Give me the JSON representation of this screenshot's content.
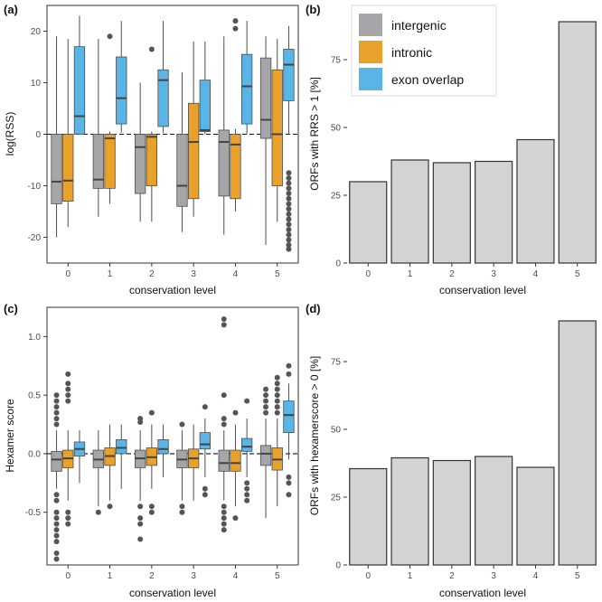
{
  "colors": {
    "intergenic": "#a6a6a8",
    "intronic": "#e8a22b",
    "exon_overlap": "#58b5e6",
    "bar_fill": "#d3d3d5",
    "bar_stroke": "#333333",
    "box_stroke": "#4d4d4d"
  },
  "legend": [
    {
      "label": "intergenic",
      "color": "#a6a6a8"
    },
    {
      "label": "intronic",
      "color": "#e8a22b"
    },
    {
      "label": "exon overlap",
      "color": "#58b5e6"
    }
  ],
  "chart_data": [
    {
      "panel": "(a)",
      "type": "boxplot",
      "xlabel": "conservation level",
      "ylabel": "log(RSS)",
      "categories": [
        "0",
        "1",
        "2",
        "3",
        "4",
        "5"
      ],
      "ylim": [
        -25,
        25
      ],
      "yticks": [
        -20,
        -10,
        0,
        10,
        20
      ],
      "reference_line": 0,
      "series": [
        {
          "name": "intergenic",
          "boxes": [
            {
              "min": -20,
              "q1": -13.5,
              "median": -9.2,
              "q3": 0,
              "max": 19,
              "outliers": []
            },
            {
              "min": -16,
              "q1": -10.5,
              "median": -8.8,
              "q3": 0,
              "max": 18.5,
              "outliers": []
            },
            {
              "min": -17,
              "q1": -11.5,
              "median": -2.5,
              "q3": 0,
              "max": 10,
              "outliers": []
            },
            {
              "min": -19,
              "q1": -14,
              "median": -10,
              "q3": 0,
              "max": 12,
              "outliers": []
            },
            {
              "min": -19.5,
              "q1": -12,
              "median": -1.5,
              "q3": 0.8,
              "max": 19,
              "outliers": []
            },
            {
              "min": -21.5,
              "q1": -0.8,
              "median": 2.8,
              "q3": 14.8,
              "max": 19,
              "outliers": []
            }
          ]
        },
        {
          "name": "intronic",
          "boxes": [
            {
              "min": -18,
              "q1": -13,
              "median": -9,
              "q3": 0,
              "max": 18.5,
              "outliers": []
            },
            {
              "min": -13.5,
              "q1": -10.5,
              "median": -0.8,
              "q3": 0,
              "max": 0.5,
              "outliers": [
                19
              ]
            },
            {
              "min": -17,
              "q1": -10,
              "median": -0.5,
              "q3": 0,
              "max": 0.5,
              "outliers": [
                16.5
              ]
            },
            {
              "min": -16,
              "q1": -12.5,
              "median": -1.5,
              "q3": 6,
              "max": 18,
              "outliers": []
            },
            {
              "min": -15,
              "q1": -12.5,
              "median": -2,
              "q3": 0,
              "max": 1,
              "outliers": [
                22,
                20.5
              ]
            },
            {
              "min": -17,
              "q1": -10,
              "median": 0,
              "q3": 12.5,
              "max": 18.5,
              "outliers": []
            }
          ]
        },
        {
          "name": "exon overlap",
          "boxes": [
            {
              "min": 0,
              "q1": 0,
              "median": 3.5,
              "q3": 17,
              "max": 23,
              "outliers": []
            },
            {
              "min": 0.3,
              "q1": 2,
              "median": 7,
              "q3": 15,
              "max": 22,
              "outliers": []
            },
            {
              "min": 0.3,
              "q1": 1.5,
              "median": 10.5,
              "q3": 12.5,
              "max": 22,
              "outliers": []
            },
            {
              "min": 0,
              "q1": 0.5,
              "median": 0.8,
              "q3": 10.5,
              "max": 18,
              "outliers": []
            },
            {
              "min": 0,
              "q1": 2,
              "median": 9.3,
              "q3": 15.5,
              "max": 22,
              "outliers": []
            },
            {
              "min": 0,
              "q1": 6.5,
              "median": 13.5,
              "q3": 16.5,
              "max": 21,
              "outliers": [
                -7.5,
                -8.5,
                -9.5,
                -10.5,
                -11.5,
                -12.5,
                -13.5,
                -14.5,
                -15.5,
                -16.5,
                -17.5,
                -18.5,
                -19.5,
                -20.5,
                -21.5,
                -22.3
              ]
            }
          ]
        }
      ]
    },
    {
      "panel": "(b)",
      "type": "bar",
      "xlabel": "conservation level",
      "ylabel": "ORFs with RRS > 1 [%]",
      "categories": [
        "0",
        "1",
        "2",
        "3",
        "4",
        "5"
      ],
      "values": [
        30,
        38,
        37,
        37.5,
        45.5,
        89
      ],
      "ylim": [
        0,
        95
      ],
      "yticks": [
        0,
        25,
        50,
        75
      ]
    },
    {
      "panel": "(c)",
      "type": "boxplot",
      "xlabel": "conservation level",
      "ylabel": "Hexamer score",
      "categories": [
        "0",
        "1",
        "2",
        "3",
        "4",
        "5"
      ],
      "ylim": [
        -0.95,
        1.25
      ],
      "yticks": [
        -0.5,
        0.0,
        0.5,
        1.0
      ],
      "ytick_labels": [
        "-0.5",
        "0.0",
        "0.5",
        "1.0"
      ],
      "reference_line": 0,
      "series": [
        {
          "name": "intergenic",
          "boxes": [
            {
              "min": -0.3,
              "q1": -0.15,
              "median": -0.05,
              "q3": 0.02,
              "max": 0.2,
              "outliers": [
                0.5,
                0.45,
                0.4,
                0.35,
                0.3,
                0.25,
                -0.35,
                -0.4,
                -0.5,
                -0.55,
                -0.6,
                -0.65,
                -0.7,
                -0.75,
                -0.85,
                -0.9
              ]
            },
            {
              "min": -0.45,
              "q1": -0.12,
              "median": -0.05,
              "q3": 0.03,
              "max": 0.2,
              "outliers": [
                -0.5
              ]
            },
            {
              "min": -0.4,
              "q1": -0.12,
              "median": -0.04,
              "q3": 0.03,
              "max": 0.2,
              "outliers": [
                0.3,
                0.27,
                -0.45,
                -0.55,
                -0.6,
                -0.73
              ]
            },
            {
              "min": -0.4,
              "q1": -0.12,
              "median": -0.05,
              "q3": 0.03,
              "max": 0.2,
              "outliers": [
                0.25,
                -0.45,
                -0.5
              ]
            },
            {
              "min": -0.4,
              "q1": -0.15,
              "median": -0.08,
              "q3": 0.03,
              "max": 0.2,
              "outliers": [
                1.15,
                1.1,
                0.5,
                0.3,
                0.25,
                -0.45,
                -0.5,
                -0.55,
                -0.6,
                -0.65
              ]
            },
            {
              "min": -0.55,
              "q1": -0.1,
              "median": 0,
              "q3": 0.07,
              "max": 0.3,
              "outliers": [
                0.55,
                0.5,
                0.45,
                0.4,
                0.35
              ]
            }
          ]
        },
        {
          "name": "intronic",
          "boxes": [
            {
              "min": -0.4,
              "q1": -0.12,
              "median": -0.04,
              "q3": 0.03,
              "max": 0.2,
              "outliers": [
                0.68,
                0.6,
                0.55,
                0.5,
                0.45,
                -0.5,
                -0.55,
                -0.6
              ]
            },
            {
              "min": -0.4,
              "q1": -0.1,
              "median": -0.02,
              "q3": 0.05,
              "max": 0.25,
              "outliers": [
                -0.45
              ]
            },
            {
              "min": -0.3,
              "q1": -0.1,
              "median": -0.03,
              "q3": 0.05,
              "max": 0.25,
              "outliers": [
                0.35,
                -0.45,
                -0.5
              ]
            },
            {
              "min": -0.4,
              "q1": -0.12,
              "median": -0.04,
              "q3": 0.04,
              "max": 0.25,
              "outliers": []
            },
            {
              "min": -0.45,
              "q1": -0.15,
              "median": -0.08,
              "q3": 0.03,
              "max": 0.25,
              "outliers": [
                0.35,
                -0.55
              ]
            },
            {
              "min": -0.45,
              "q1": -0.14,
              "median": -0.05,
              "q3": 0.05,
              "max": 0.3,
              "outliers": [
                0.65,
                0.6,
                0.55,
                0.5,
                0.45,
                0.4,
                0.35
              ]
            }
          ]
        },
        {
          "name": "exon overlap",
          "boxes": [
            {
              "min": -0.25,
              "q1": -0.02,
              "median": 0.04,
              "q3": 0.1,
              "max": 0.2,
              "outliers": []
            },
            {
              "min": -0.3,
              "q1": 0,
              "median": 0.05,
              "q3": 0.12,
              "max": 0.25,
              "outliers": []
            },
            {
              "min": -0.2,
              "q1": 0,
              "median": 0.04,
              "q3": 0.12,
              "max": 0.25,
              "outliers": []
            },
            {
              "min": -0.2,
              "q1": 0.04,
              "median": 0.08,
              "q3": 0.18,
              "max": 0.3,
              "outliers": [
                0.4,
                -0.3,
                -0.35
              ]
            },
            {
              "min": -0.2,
              "q1": 0.02,
              "median": 0.06,
              "q3": 0.13,
              "max": 0.3,
              "outliers": [
                0.45,
                -0.25,
                -0.3,
                -0.35,
                -0.4
              ]
            },
            {
              "min": -0.05,
              "q1": 0.18,
              "median": 0.33,
              "q3": 0.45,
              "max": 0.6,
              "outliers": [
                0.75,
                0.68,
                -0.2,
                -0.25,
                -0.35
              ]
            }
          ]
        }
      ]
    },
    {
      "panel": "(d)",
      "type": "bar",
      "xlabel": "conservation level",
      "ylabel": "ORFs with hexamerscore > 0 [%]",
      "categories": [
        "0",
        "1",
        "2",
        "3",
        "4",
        "5"
      ],
      "values": [
        35.5,
        39.5,
        38.5,
        40,
        36,
        90
      ],
      "ylim": [
        0,
        95
      ],
      "yticks": [
        0,
        25,
        50,
        75
      ]
    }
  ]
}
